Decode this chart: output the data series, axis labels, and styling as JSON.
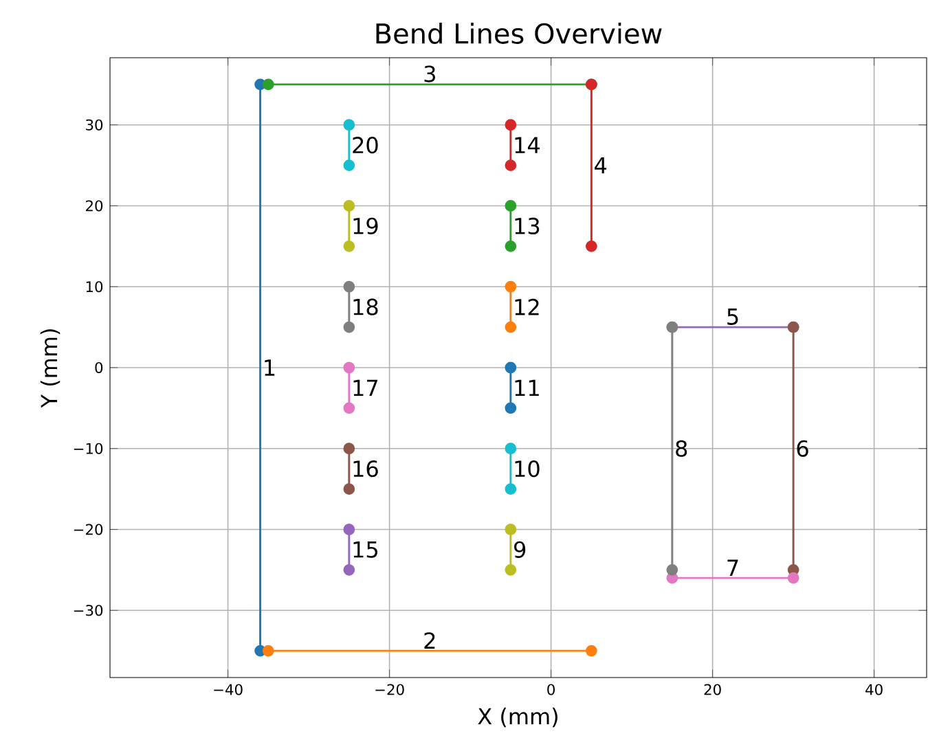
{
  "chart_data": {
    "type": "line",
    "title": "Bend Lines Overview",
    "xlabel": "X (mm)",
    "ylabel": "Y (mm)",
    "marker": "circle",
    "grid": true,
    "xlim": [
      -54.6,
      46.5
    ],
    "ylim": [
      -38.3,
      38.3
    ],
    "xticks": [
      {
        "value": -40,
        "label": "−40"
      },
      {
        "value": -20,
        "label": "−20"
      },
      0,
      20,
      40
    ],
    "yticks": [
      {
        "value": -30,
        "label": "−30"
      },
      {
        "value": -20,
        "label": "−20"
      },
      {
        "value": -10,
        "label": "−10"
      },
      0,
      10,
      20,
      30
    ],
    "series": [
      {
        "name": "1",
        "color": "#1f77b4",
        "x": [
          -36,
          -36
        ],
        "values": [
          35,
          -35
        ]
      },
      {
        "name": "2",
        "color": "#ff7f0e",
        "x": [
          -35,
          5
        ],
        "values": [
          -35,
          -35
        ]
      },
      {
        "name": "3",
        "color": "#2ca02c",
        "x": [
          -35,
          5
        ],
        "values": [
          35,
          35
        ]
      },
      {
        "name": "4",
        "color": "#d62728",
        "x": [
          5,
          5
        ],
        "values": [
          35,
          15
        ]
      },
      {
        "name": "5",
        "color": "#9467bd",
        "x": [
          15,
          30
        ],
        "values": [
          5,
          5
        ]
      },
      {
        "name": "6",
        "color": "#8c564b",
        "x": [
          30,
          30
        ],
        "values": [
          5,
          -25
        ]
      },
      {
        "name": "7",
        "color": "#e377c2",
        "x": [
          15,
          30
        ],
        "values": [
          -26,
          -26
        ]
      },
      {
        "name": "8",
        "color": "#7f7f7f",
        "x": [
          15,
          15
        ],
        "values": [
          -25,
          5
        ]
      },
      {
        "name": "9",
        "color": "#bcbd22",
        "x": [
          -5,
          -5
        ],
        "values": [
          -20,
          -25
        ]
      },
      {
        "name": "10",
        "color": "#17becf",
        "x": [
          -5,
          -5
        ],
        "values": [
          -10,
          -15
        ]
      },
      {
        "name": "11",
        "color": "#1f77b4",
        "x": [
          -5,
          -5
        ],
        "values": [
          0,
          -5
        ]
      },
      {
        "name": "12",
        "color": "#ff7f0e",
        "x": [
          -5,
          -5
        ],
        "values": [
          10,
          5
        ]
      },
      {
        "name": "13",
        "color": "#2ca02c",
        "x": [
          -5,
          -5
        ],
        "values": [
          20,
          15
        ]
      },
      {
        "name": "14",
        "color": "#d62728",
        "x": [
          -5,
          -5
        ],
        "values": [
          30,
          25
        ]
      },
      {
        "name": "15",
        "color": "#9467bd",
        "x": [
          -25,
          -25
        ],
        "values": [
          -20,
          -25
        ]
      },
      {
        "name": "16",
        "color": "#8c564b",
        "x": [
          -25,
          -25
        ],
        "values": [
          -10,
          -15
        ]
      },
      {
        "name": "17",
        "color": "#e377c2",
        "x": [
          -25,
          -25
        ],
        "values": [
          0,
          -5
        ]
      },
      {
        "name": "18",
        "color": "#7f7f7f",
        "x": [
          -25,
          -25
        ],
        "values": [
          10,
          5
        ]
      },
      {
        "name": "19",
        "color": "#bcbd22",
        "x": [
          -25,
          -25
        ],
        "values": [
          20,
          15
        ]
      },
      {
        "name": "20",
        "color": "#17becf",
        "x": [
          -25,
          -25
        ],
        "values": [
          30,
          25
        ]
      }
    ]
  }
}
